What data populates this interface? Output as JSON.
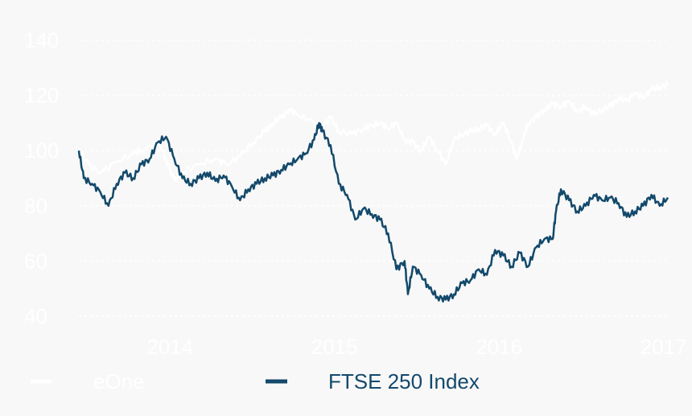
{
  "chart_data": {
    "type": "line",
    "title": "",
    "xlabel": "",
    "ylabel": "",
    "ylim": [
      40,
      140
    ],
    "yticks": [
      "40",
      "60",
      "80",
      "100",
      "120",
      "140"
    ],
    "xticks": [
      "2014",
      "2015",
      "2016",
      "2017"
    ],
    "xlim": [
      2013.72,
      2017.3
    ],
    "grid": true,
    "legend_position": "bottom",
    "colors": {
      "eone": "#ffffff",
      "ftse": "#13496b",
      "grid": "#ffffff",
      "background": "#f8f8f8"
    },
    "series": [
      {
        "name": "eOne",
        "x": [
          2013.72,
          2013.78,
          2013.85,
          2013.95,
          2014.05,
          2014.1,
          2014.2,
          2014.25,
          2014.3,
          2014.35,
          2014.45,
          2014.55,
          2014.62,
          2014.7,
          2014.78,
          2014.85,
          2014.9,
          2014.95,
          2015.0,
          2015.05,
          2015.12,
          2015.2,
          2015.25,
          2015.3,
          2015.38,
          2015.45,
          2015.5,
          2015.55,
          2015.6,
          2015.65,
          2015.7,
          2015.75,
          2015.8,
          2015.85,
          2015.9,
          2015.95,
          2016.0,
          2016.05,
          2016.1,
          2016.15,
          2016.2,
          2016.25,
          2016.3,
          2016.35,
          2016.38,
          2016.42,
          2016.45,
          2016.5,
          2016.55,
          2016.6,
          2016.65,
          2016.7,
          2016.75,
          2016.8,
          2016.85,
          2016.9,
          2016.95,
          2017.0,
          2017.05,
          2017.1,
          2017.15,
          2017.2,
          2017.25,
          2017.3
        ],
        "values": [
          100,
          95,
          92,
          96,
          99,
          100,
          103,
          97,
          89,
          92,
          95,
          97,
          95,
          98,
          103,
          107,
          110,
          112,
          115,
          113,
          111,
          109,
          112,
          107,
          106,
          108,
          109,
          110,
          108,
          110,
          104,
          103,
          100,
          105,
          100,
          95,
          104,
          106,
          107,
          108,
          109,
          106,
          110,
          103,
          97,
          104,
          110,
          112,
          115,
          117,
          116,
          118,
          114,
          116,
          113,
          115,
          116,
          119,
          118,
          121,
          119,
          122,
          123,
          124
        ]
      },
      {
        "name": "FTSE 250 Index",
        "x": [
          2013.72,
          2013.75,
          2013.8,
          2013.85,
          2013.9,
          2013.95,
          2014.0,
          2014.05,
          2014.1,
          2014.15,
          2014.2,
          2014.25,
          2014.3,
          2014.35,
          2014.4,
          2014.45,
          2014.5,
          2014.55,
          2014.6,
          2014.65,
          2014.7,
          2014.75,
          2014.8,
          2014.85,
          2014.9,
          2014.95,
          2015.0,
          2015.05,
          2015.1,
          2015.15,
          2015.18,
          2015.2,
          2015.25,
          2015.3,
          2015.35,
          2015.4,
          2015.45,
          2015.5,
          2015.55,
          2015.6,
          2015.65,
          2015.7,
          2015.72,
          2015.75,
          2015.8,
          2015.85,
          2015.9,
          2015.95,
          2016.0,
          2016.05,
          2016.1,
          2016.15,
          2016.2,
          2016.25,
          2016.3,
          2016.35,
          2016.4,
          2016.45,
          2016.5,
          2016.55,
          2016.6,
          2016.62,
          2016.65,
          2016.7,
          2016.75,
          2016.8,
          2016.85,
          2016.9,
          2016.95,
          2017.0,
          2017.05,
          2017.1,
          2017.15,
          2017.2,
          2017.25,
          2017.3
        ],
        "values": [
          100,
          90,
          88,
          85,
          80,
          88,
          92,
          90,
          95,
          97,
          103,
          105,
          97,
          90,
          88,
          90,
          92,
          89,
          91,
          87,
          82,
          86,
          88,
          90,
          91,
          93,
          95,
          97,
          99,
          104,
          110,
          107,
          102,
          88,
          84,
          75,
          79,
          77,
          75,
          70,
          57,
          60,
          48,
          58,
          55,
          50,
          47,
          46,
          48,
          52,
          53,
          57,
          55,
          64,
          62,
          58,
          63,
          58,
          65,
          68,
          68,
          78,
          86,
          82,
          78,
          80,
          84,
          82,
          83,
          81,
          76,
          78,
          80,
          84,
          80,
          83
        ]
      }
    ]
  },
  "legend": {
    "eone_label": "eOne",
    "ftse_label": "FTSE 250 Index"
  }
}
